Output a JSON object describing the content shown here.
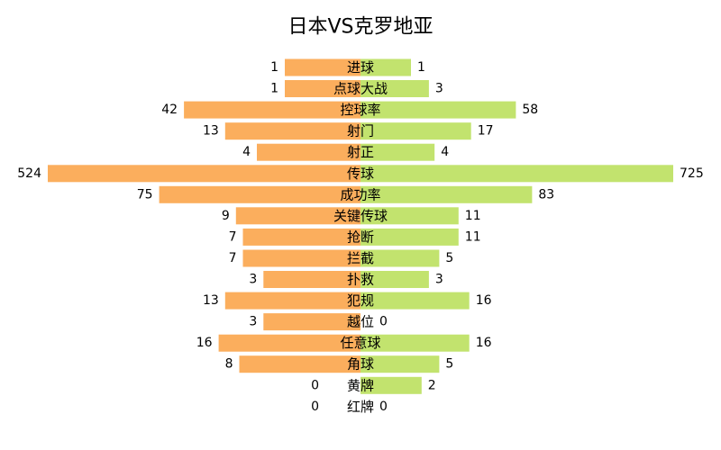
{
  "colors": {
    "left_bar": "#fbae5d",
    "right_bar": "#c2e36e",
    "text": "#000000",
    "background": "#ffffff"
  },
  "chart_data": {
    "type": "bar",
    "orientation": "horizontal-diverging",
    "title": "日本VS克罗地亚",
    "grid": false,
    "legend": "none",
    "categories": [
      "进球",
      "点球大战",
      "控球率",
      "射门",
      "射正",
      "传球",
      "成功率",
      "关键传球",
      "抢断",
      "拦截",
      "扑救",
      "犯规",
      "越位",
      "任意球",
      "角球",
      "黄牌",
      "红牌"
    ],
    "series": [
      {
        "values": [
          1,
          1,
          42,
          13,
          4,
          524,
          75,
          9,
          7,
          7,
          3,
          13,
          3,
          16,
          8,
          0,
          0
        ]
      },
      {
        "values": [
          1,
          3,
          58,
          17,
          4,
          725,
          83,
          11,
          11,
          5,
          3,
          16,
          0,
          16,
          5,
          2,
          0
        ]
      }
    ]
  }
}
